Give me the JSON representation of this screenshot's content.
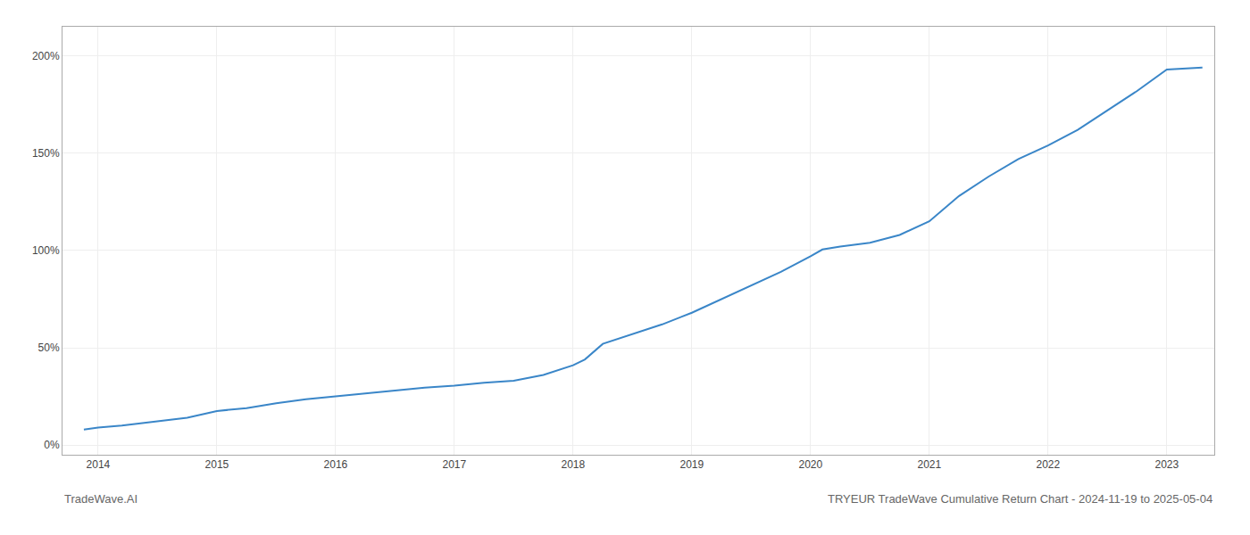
{
  "chart_data": {
    "type": "line",
    "title": "TRYEUR TradeWave Cumulative Return Chart - 2024-11-19 to 2025-05-04",
    "annotations": [
      "TradeWave.AI"
    ],
    "color": "#3a86c8",
    "grid": true,
    "xlim": [
      2013.7,
      2023.4
    ],
    "xticks": [
      2014,
      2015,
      2016,
      2017,
      2018,
      2019,
      2020,
      2021,
      2022,
      2023
    ],
    "ylim": [
      -5,
      215
    ],
    "yticks": [
      {
        "value": 0,
        "label": "0%"
      },
      {
        "value": 50,
        "label": "50%"
      },
      {
        "value": 100,
        "label": "100%"
      },
      {
        "value": 150,
        "label": "150%"
      },
      {
        "value": 200,
        "label": "200%"
      }
    ],
    "x": [
      2013.88,
      2014.0,
      2014.2,
      2014.5,
      2014.75,
      2015.0,
      2015.25,
      2015.5,
      2015.75,
      2016.0,
      2016.25,
      2016.5,
      2016.75,
      2017.0,
      2017.25,
      2017.5,
      2017.75,
      2018.0,
      2018.1,
      2018.25,
      2018.5,
      2018.75,
      2019.0,
      2019.25,
      2019.5,
      2019.75,
      2020.0,
      2020.1,
      2020.25,
      2020.5,
      2020.75,
      2021.0,
      2021.25,
      2021.5,
      2021.75,
      2022.0,
      2022.25,
      2022.5,
      2022.75,
      2023.0,
      2023.3
    ],
    "values": [
      8,
      9,
      10,
      12,
      14,
      17.5,
      19,
      21.5,
      23.5,
      25,
      26.5,
      28,
      29.5,
      30.5,
      32,
      33,
      36,
      41,
      44,
      52,
      57,
      62,
      68,
      75,
      82,
      89,
      97,
      100.5,
      102,
      104,
      108,
      115,
      128,
      138,
      147,
      154,
      162,
      172,
      182,
      193,
      194
    ]
  }
}
